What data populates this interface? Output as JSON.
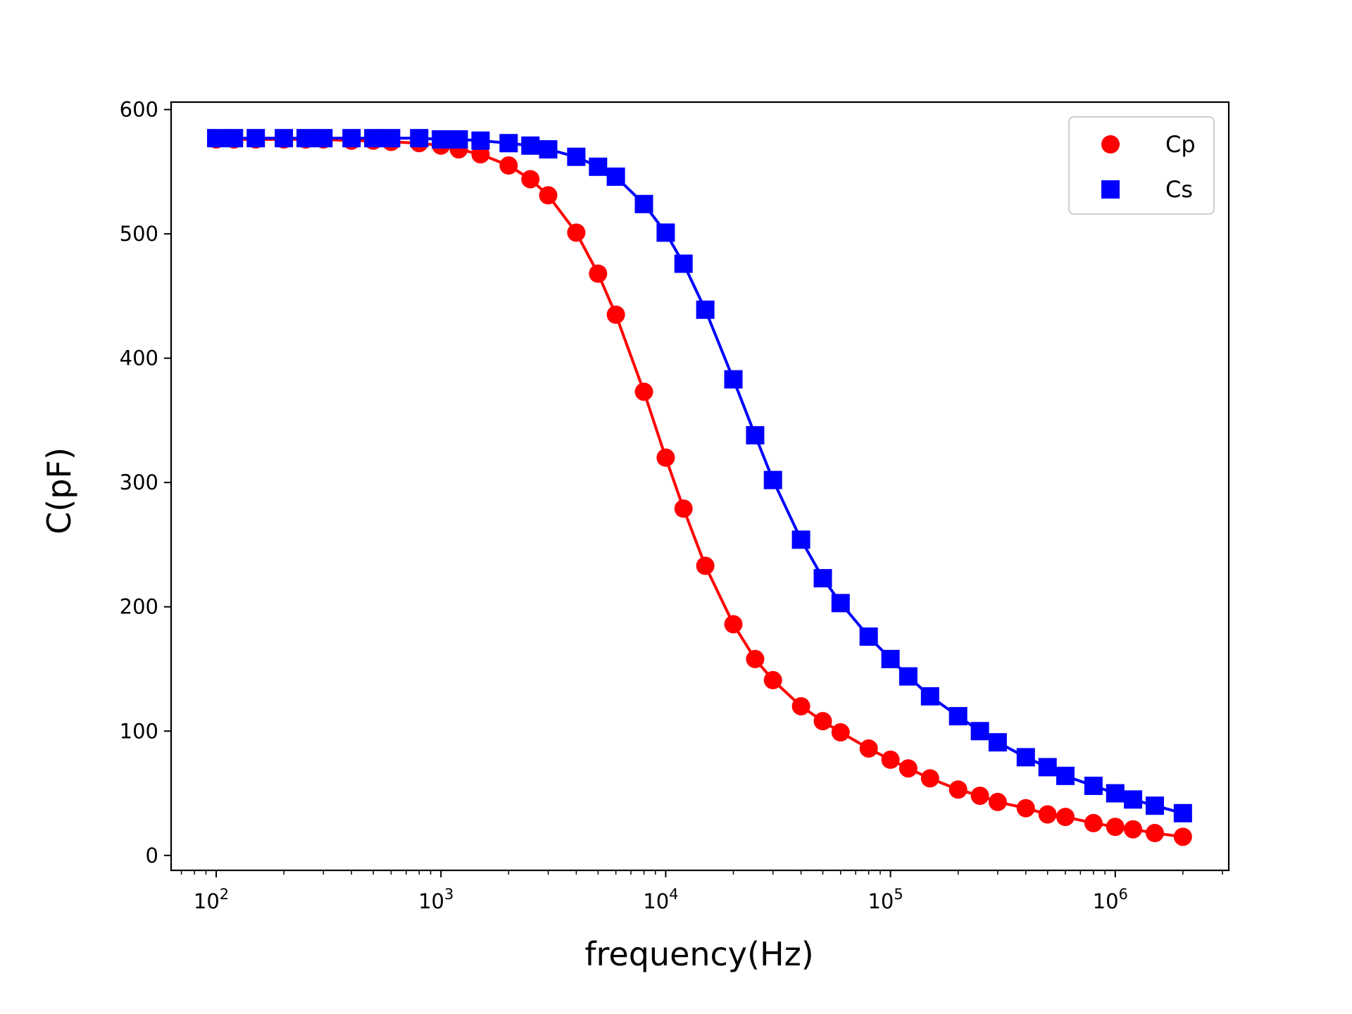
{
  "chart_data": {
    "type": "line",
    "xscale": "log",
    "xlabel": "frequency(Hz)",
    "ylabel": "C(pF)",
    "xlim": [
      63,
      3200000
    ],
    "ylim": [
      -12,
      606
    ],
    "yticks": [
      0,
      100,
      200,
      300,
      400,
      500,
      600
    ],
    "xticks": [
      {
        "value": 100,
        "base": "10",
        "exp": "2"
      },
      {
        "value": 1000,
        "base": "10",
        "exp": "3"
      },
      {
        "value": 10000,
        "base": "10",
        "exp": "4"
      },
      {
        "value": 100000,
        "base": "10",
        "exp": "5"
      },
      {
        "value": 1000000,
        "base": "10",
        "exp": "6"
      }
    ],
    "legend_position": "top-right",
    "series": [
      {
        "name": "Cp",
        "color": "#ff0000",
        "marker": "circle",
        "points": [
          [
            100,
            576
          ],
          [
            120,
            576
          ],
          [
            150,
            576
          ],
          [
            200,
            576
          ],
          [
            250,
            576
          ],
          [
            300,
            576
          ],
          [
            400,
            575
          ],
          [
            500,
            575
          ],
          [
            600,
            574
          ],
          [
            800,
            573
          ],
          [
            1000,
            571
          ],
          [
            1200,
            568
          ],
          [
            1500,
            564
          ],
          [
            2000,
            555
          ],
          [
            2500,
            544
          ],
          [
            3000,
            531
          ],
          [
            4000,
            501
          ],
          [
            5000,
            468
          ],
          [
            6000,
            435
          ],
          [
            8000,
            373
          ],
          [
            10000,
            320
          ],
          [
            12000,
            279
          ],
          [
            15000,
            233
          ],
          [
            20000,
            186
          ],
          [
            25000,
            158
          ],
          [
            30000,
            141
          ],
          [
            40000,
            120
          ],
          [
            50000,
            108
          ],
          [
            60000,
            99
          ],
          [
            80000,
            86
          ],
          [
            100000,
            77
          ],
          [
            120000,
            70
          ],
          [
            150000,
            62
          ],
          [
            200000,
            53
          ],
          [
            250000,
            48
          ],
          [
            300000,
            43
          ],
          [
            400000,
            38
          ],
          [
            500000,
            33
          ],
          [
            600000,
            31
          ],
          [
            800000,
            26
          ],
          [
            1000000,
            23
          ],
          [
            1200000,
            21
          ],
          [
            1500000,
            18
          ],
          [
            2000000,
            15
          ]
        ]
      },
      {
        "name": "Cs",
        "color": "#0000ff",
        "marker": "square",
        "points": [
          [
            100,
            577
          ],
          [
            120,
            577
          ],
          [
            150,
            577
          ],
          [
            200,
            577
          ],
          [
            250,
            577
          ],
          [
            300,
            577
          ],
          [
            400,
            577
          ],
          [
            500,
            577
          ],
          [
            600,
            577
          ],
          [
            800,
            577
          ],
          [
            1000,
            576
          ],
          [
            1200,
            576
          ],
          [
            1500,
            575
          ],
          [
            2000,
            573
          ],
          [
            2500,
            571
          ],
          [
            3000,
            568
          ],
          [
            4000,
            562
          ],
          [
            5000,
            554
          ],
          [
            6000,
            546
          ],
          [
            8000,
            524
          ],
          [
            10000,
            501
          ],
          [
            12000,
            476
          ],
          [
            15000,
            439
          ],
          [
            20000,
            383
          ],
          [
            25000,
            338
          ],
          [
            30000,
            302
          ],
          [
            40000,
            254
          ],
          [
            50000,
            223
          ],
          [
            60000,
            203
          ],
          [
            80000,
            176
          ],
          [
            100000,
            158
          ],
          [
            120000,
            144
          ],
          [
            150000,
            128
          ],
          [
            200000,
            112
          ],
          [
            250000,
            100
          ],
          [
            300000,
            91
          ],
          [
            400000,
            79
          ],
          [
            500000,
            71
          ],
          [
            600000,
            64
          ],
          [
            800000,
            56
          ],
          [
            1000000,
            50
          ],
          [
            1200000,
            45
          ],
          [
            1500000,
            40
          ],
          [
            2000000,
            34
          ]
        ]
      }
    ]
  }
}
